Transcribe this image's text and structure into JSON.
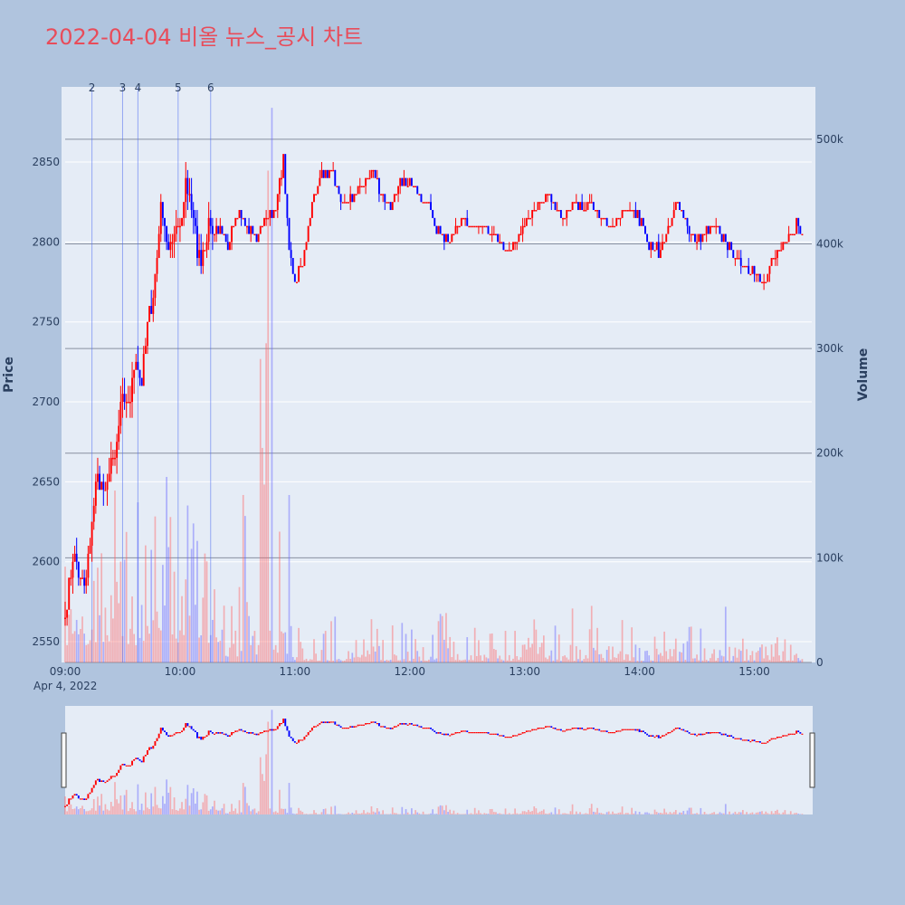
{
  "chart_data": {
    "type": "candlestick",
    "title": "2022-04-04 비올 뉴스_공시 차트",
    "ylabel": "Price",
    "y2label": "Volume",
    "x_ticks": [
      "09:00",
      "10:00",
      "11:00",
      "12:00",
      "13:00",
      "14:00",
      "15:00"
    ],
    "x_date_label": "Apr 4, 2022",
    "y_ticks": [
      2550,
      2600,
      2650,
      2700,
      2750,
      2800,
      2850
    ],
    "y2_ticks": [
      "0",
      "100k",
      "200k",
      "300k",
      "400k",
      "500k"
    ],
    "y2_tick_values": [
      0,
      100000,
      200000,
      300000,
      400000,
      500000
    ],
    "ylim": [
      2537,
      2897
    ],
    "y2lim": [
      0,
      550000
    ],
    "xlim": [
      "09:00",
      "15:30"
    ],
    "up_color": "#ff0000",
    "down_color": "#0000ff",
    "news_markers": [
      {
        "label": "2",
        "time": "09:14"
      },
      {
        "label": "3",
        "time": "09:30"
      },
      {
        "label": "4",
        "time": "09:38"
      },
      {
        "label": "5",
        "time": "09:59"
      },
      {
        "label": "6",
        "time": "10:16"
      }
    ],
    "close_anchors": [
      [
        "09:00",
        2565
      ],
      [
        "09:03",
        2595
      ],
      [
        "09:06",
        2600
      ],
      [
        "09:10",
        2585
      ],
      [
        "09:14",
        2625
      ],
      [
        "09:17",
        2655
      ],
      [
        "09:20",
        2640
      ],
      [
        "09:24",
        2665
      ],
      [
        "09:27",
        2670
      ],
      [
        "09:30",
        2705
      ],
      [
        "09:33",
        2700
      ],
      [
        "09:37",
        2725
      ],
      [
        "09:40",
        2710
      ],
      [
        "09:43",
        2755
      ],
      [
        "09:45",
        2760
      ],
      [
        "09:47",
        2775
      ],
      [
        "09:50",
        2820
      ],
      [
        "09:53",
        2800
      ],
      [
        "09:56",
        2805
      ],
      [
        "10:00",
        2810
      ],
      [
        "10:03",
        2835
      ],
      [
        "10:06",
        2825
      ],
      [
        "10:09",
        2795
      ],
      [
        "10:12",
        2790
      ],
      [
        "10:15",
        2810
      ],
      [
        "10:18",
        2805
      ],
      [
        "10:21",
        2810
      ],
      [
        "10:25",
        2795
      ],
      [
        "10:30",
        2820
      ],
      [
        "10:35",
        2810
      ],
      [
        "10:40",
        2800
      ],
      [
        "10:45",
        2815
      ],
      [
        "10:50",
        2820
      ],
      [
        "10:54",
        2850
      ],
      [
        "10:57",
        2800
      ],
      [
        "11:00",
        2775
      ],
      [
        "11:03",
        2785
      ],
      [
        "11:06",
        2800
      ],
      [
        "11:09",
        2825
      ],
      [
        "11:12",
        2835
      ],
      [
        "11:15",
        2845
      ],
      [
        "11:20",
        2840
      ],
      [
        "11:25",
        2825
      ],
      [
        "11:30",
        2830
      ],
      [
        "11:35",
        2835
      ],
      [
        "11:40",
        2845
      ],
      [
        "11:45",
        2830
      ],
      [
        "11:50",
        2820
      ],
      [
        "11:55",
        2840
      ],
      [
        "12:00",
        2835
      ],
      [
        "12:05",
        2830
      ],
      [
        "12:10",
        2825
      ],
      [
        "12:15",
        2805
      ],
      [
        "12:20",
        2800
      ],
      [
        "12:25",
        2810
      ],
      [
        "12:30",
        2815
      ],
      [
        "12:35",
        2810
      ],
      [
        "12:40",
        2808
      ],
      [
        "12:45",
        2800
      ],
      [
        "12:50",
        2795
      ],
      [
        "12:55",
        2800
      ],
      [
        "13:00",
        2810
      ],
      [
        "13:05",
        2820
      ],
      [
        "13:10",
        2830
      ],
      [
        "13:15",
        2825
      ],
      [
        "13:20",
        2815
      ],
      [
        "13:25",
        2825
      ],
      [
        "13:30",
        2820
      ],
      [
        "13:35",
        2825
      ],
      [
        "13:40",
        2815
      ],
      [
        "13:45",
        2810
      ],
      [
        "13:50",
        2815
      ],
      [
        "13:55",
        2820
      ],
      [
        "14:00",
        2815
      ],
      [
        "14:05",
        2800
      ],
      [
        "14:10",
        2795
      ],
      [
        "14:15",
        2810
      ],
      [
        "14:20",
        2825
      ],
      [
        "14:25",
        2810
      ],
      [
        "14:30",
        2800
      ],
      [
        "14:35",
        2805
      ],
      [
        "14:40",
        2810
      ],
      [
        "14:45",
        2800
      ],
      [
        "14:50",
        2790
      ],
      [
        "14:55",
        2785
      ],
      [
        "15:00",
        2780
      ],
      [
        "15:05",
        2775
      ],
      [
        "15:10",
        2790
      ],
      [
        "15:15",
        2800
      ],
      [
        "15:20",
        2805
      ],
      [
        "15:23",
        2812
      ],
      [
        "15:25",
        2805
      ]
    ]
  }
}
